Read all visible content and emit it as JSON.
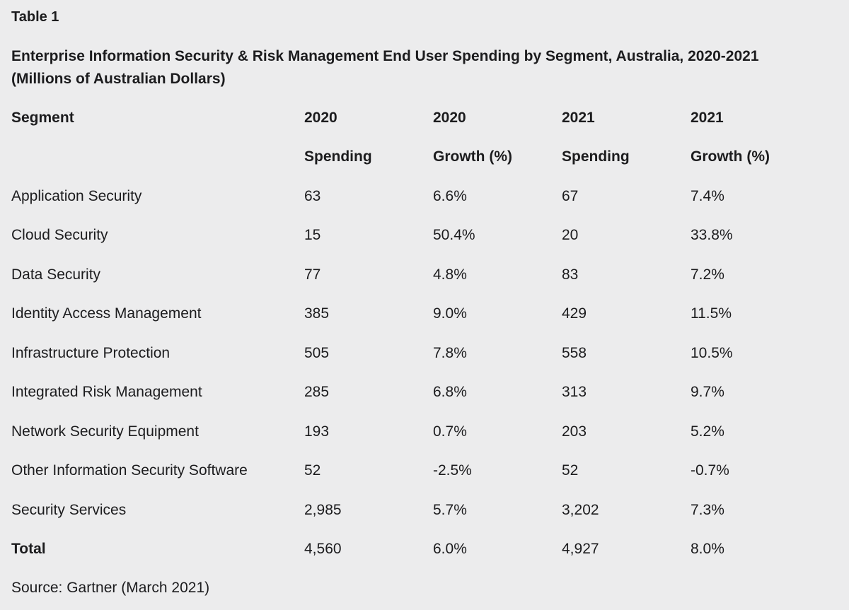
{
  "table_label": "Table 1",
  "title_line1": "Enterprise Information Security & Risk Management End User Spending by Segment, Australia, 2020-2021",
  "title_line2": "(Millions of Australian Dollars)",
  "headers": {
    "row1": [
      "Segment",
      "2020",
      "2020",
      "2021",
      "2021"
    ],
    "row2": [
      "",
      "Spending",
      "Growth (%)",
      "Spending",
      "Growth (%)"
    ]
  },
  "rows": [
    [
      "Application Security",
      "63",
      "6.6%",
      "67",
      "7.4%"
    ],
    [
      "Cloud Security",
      "15",
      "50.4%",
      "20",
      "33.8%"
    ],
    [
      "Data Security",
      "77",
      "4.8%",
      "83",
      "7.2%"
    ],
    [
      "Identity Access Management",
      "385",
      "9.0%",
      "429",
      "11.5%"
    ],
    [
      "Infrastructure Protection",
      "505",
      "7.8%",
      "558",
      "10.5%"
    ],
    [
      "Integrated Risk Management",
      "285",
      "6.8%",
      "313",
      "9.7%"
    ],
    [
      "Network Security Equipment",
      "193",
      "0.7%",
      "203",
      "5.2%"
    ],
    [
      "Other Information Security Software",
      "52",
      "-2.5%",
      "52",
      "-0.7%"
    ],
    [
      "Security Services",
      "2,985",
      "5.7%",
      "3,202",
      "7.3%"
    ]
  ],
  "total": [
    "Total",
    "4,560",
    "6.0%",
    "4,927",
    "8.0%"
  ],
  "source": "Source: Gartner (March 2021)",
  "colors": {
    "background": "#ececed",
    "text": "#1c1c1e"
  }
}
